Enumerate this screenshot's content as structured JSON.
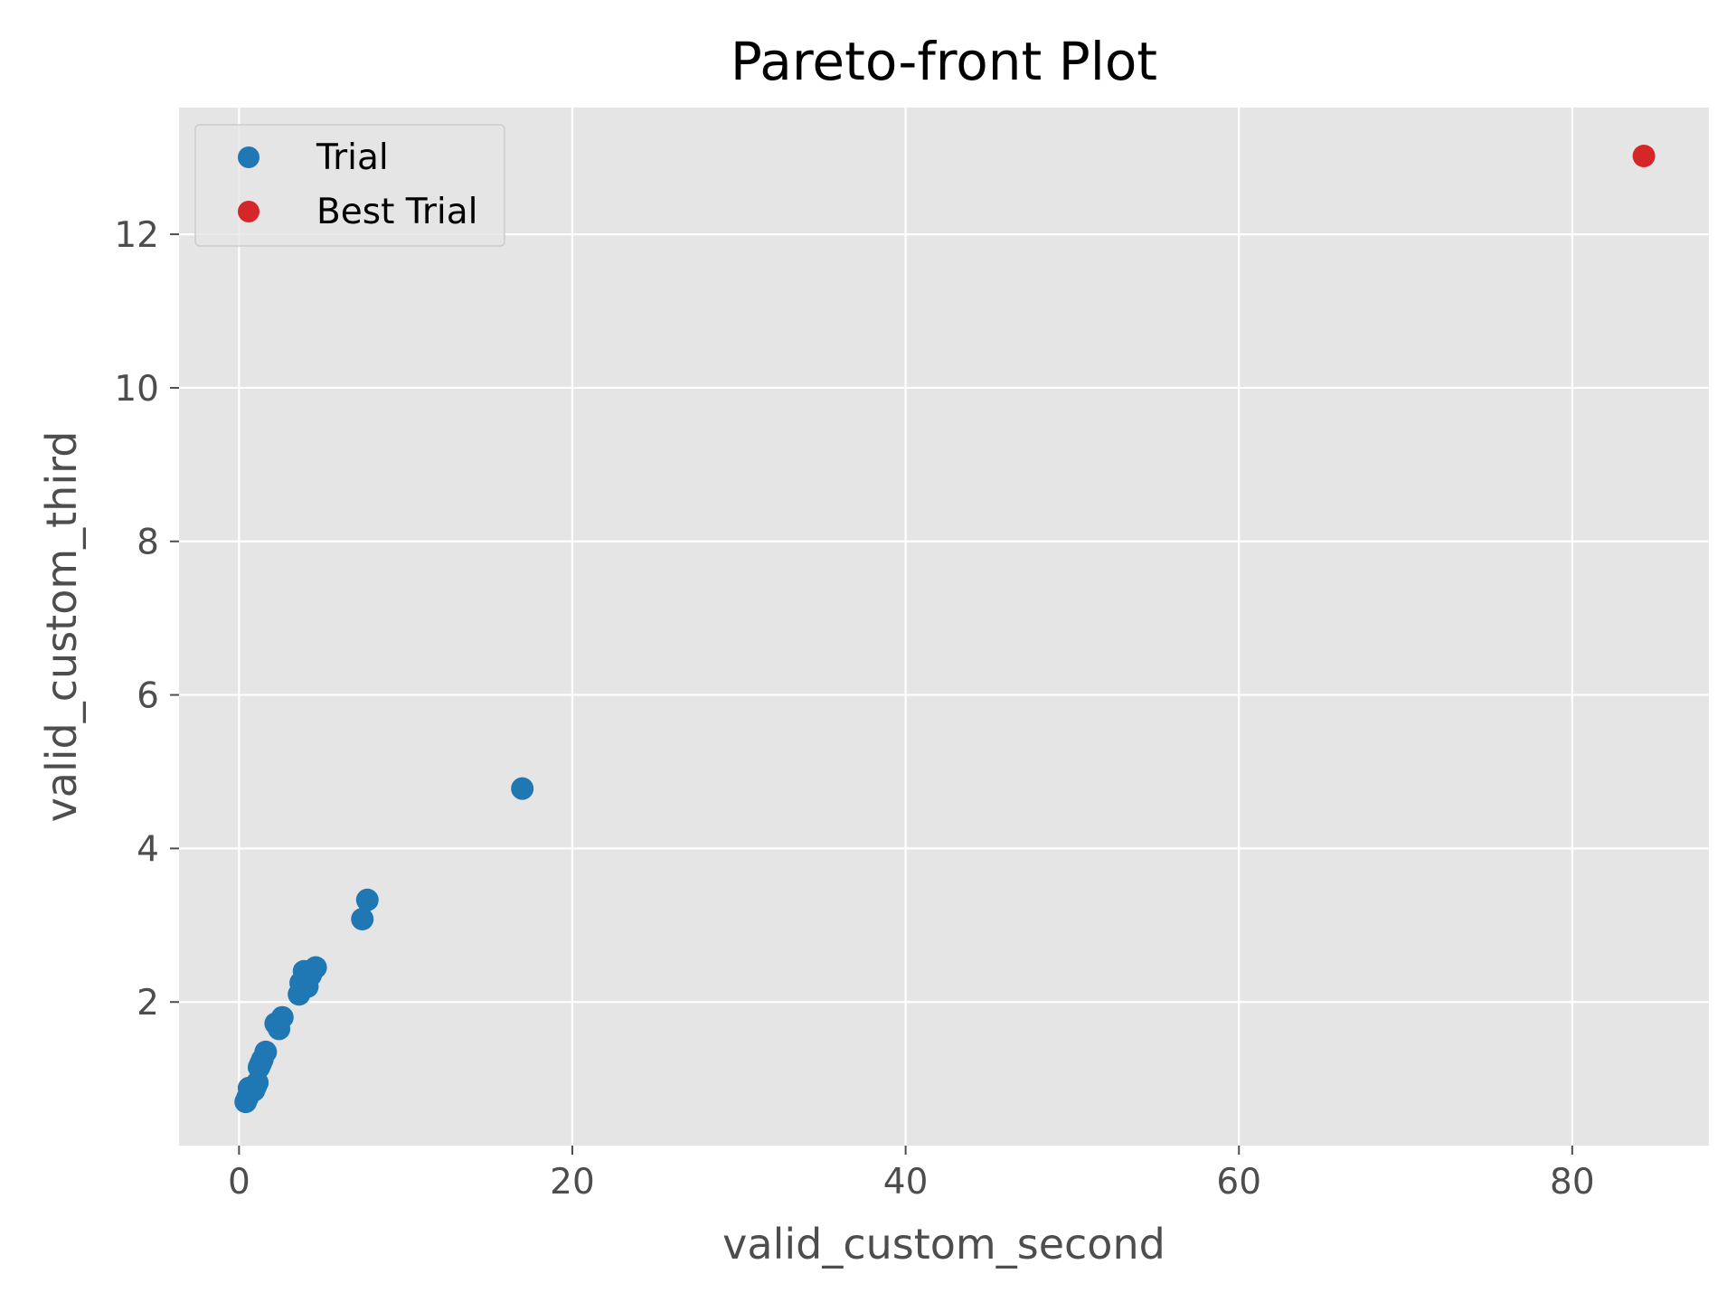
{
  "chart_data": {
    "type": "scatter",
    "title": "Pareto-front Plot",
    "xlabel": "valid_custom_second",
    "ylabel": "valid_custom_third",
    "xlim": [
      -3.6,
      88.2
    ],
    "ylim": [
      0.13,
      13.65
    ],
    "xticks": [
      0,
      20,
      40,
      60,
      80
    ],
    "yticks": [
      2,
      4,
      6,
      8,
      10,
      12
    ],
    "grid": true,
    "background_color": "#e5e5e5",
    "grid_color": "#ffffff",
    "legend_position": "upper-left",
    "series": [
      {
        "name": "Trial",
        "color": "#1f77b4",
        "points": [
          {
            "x": 0.4,
            "y": 0.7
          },
          {
            "x": 0.5,
            "y": 0.75
          },
          {
            "x": 0.6,
            "y": 0.88
          },
          {
            "x": 0.9,
            "y": 0.85
          },
          {
            "x": 1.0,
            "y": 0.9
          },
          {
            "x": 1.1,
            "y": 0.95
          },
          {
            "x": 1.2,
            "y": 1.15
          },
          {
            "x": 1.3,
            "y": 1.2
          },
          {
            "x": 1.4,
            "y": 1.25
          },
          {
            "x": 1.6,
            "y": 1.35
          },
          {
            "x": 2.2,
            "y": 1.72
          },
          {
            "x": 2.4,
            "y": 1.65
          },
          {
            "x": 2.6,
            "y": 1.8
          },
          {
            "x": 3.6,
            "y": 2.1
          },
          {
            "x": 3.7,
            "y": 2.25
          },
          {
            "x": 3.9,
            "y": 2.4
          },
          {
            "x": 4.1,
            "y": 2.2
          },
          {
            "x": 4.3,
            "y": 2.35
          },
          {
            "x": 4.6,
            "y": 2.45
          },
          {
            "x": 7.4,
            "y": 3.08
          },
          {
            "x": 7.7,
            "y": 3.33
          },
          {
            "x": 17.0,
            "y": 4.78
          }
        ]
      },
      {
        "name": "Best Trial",
        "color": "#d62728",
        "points": [
          {
            "x": 84.3,
            "y": 13.02
          }
        ]
      }
    ]
  }
}
